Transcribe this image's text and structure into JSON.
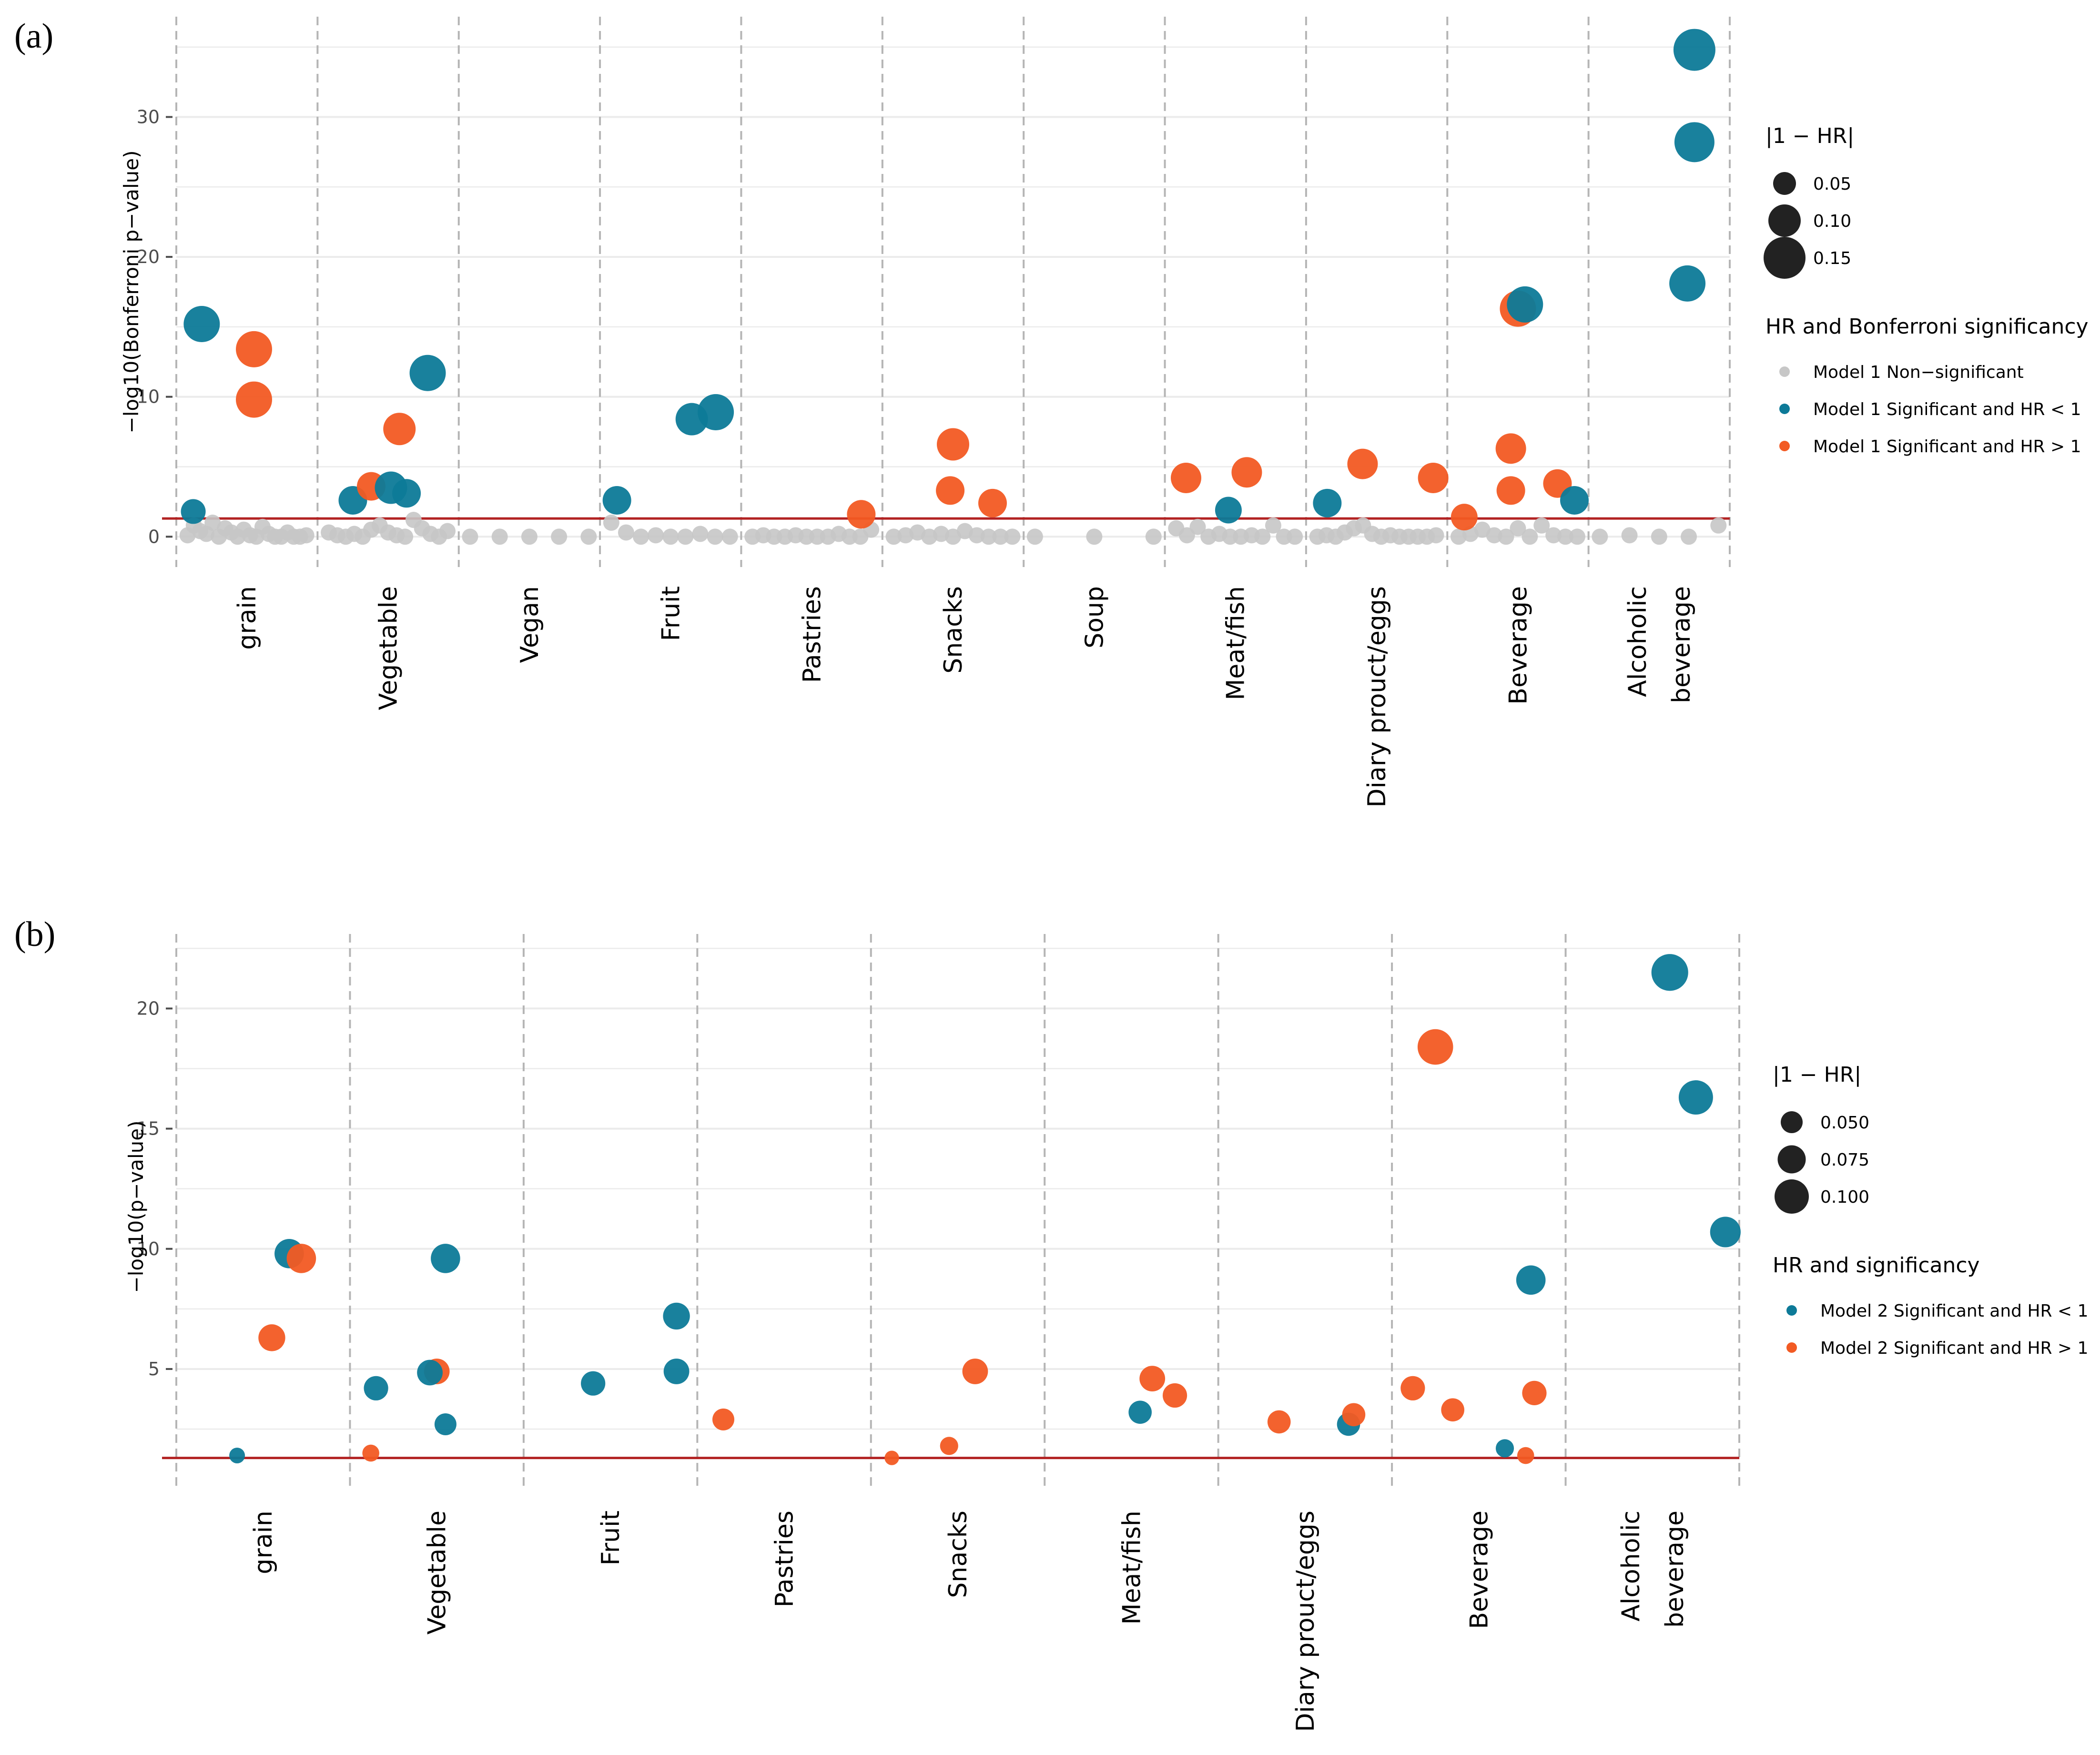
{
  "colors": {
    "nonsig": "#c7c7c7",
    "hr_lt_1": "#0d7a98",
    "hr_gt_1": "#f25a23",
    "threshold": "#b22222",
    "separator": "#b5b5b5",
    "grid": "#ebebeb"
  },
  "chart_data": [
    {
      "panel_label": "(a)",
      "type": "scatter",
      "ylabel": "−log10(Bonferroni p−value)",
      "ylim": [
        -2,
        37
      ],
      "yticks": [
        0,
        10,
        20,
        30
      ],
      "threshold": 1.3,
      "categories": [
        "grain",
        "Vegetable",
        "Vegan",
        "Fruit",
        "Pastries",
        "Snacks",
        "Soup",
        "Meat/fish",
        "Diary prouct/eggs",
        "Beverage",
        "Alcoholic beverage"
      ],
      "category_labels": [
        [
          "grain"
        ],
        [
          "Vegetable"
        ],
        [
          "Vegan"
        ],
        [
          "Fruit"
        ],
        [
          "Pastries"
        ],
        [
          "Snacks"
        ],
        [
          "Soup"
        ],
        [
          "Meat/fish"
        ],
        [
          "Diary prouct/eggs"
        ],
        [
          "Beverage"
        ],
        [
          "Alcoholic",
          "beverage"
        ]
      ],
      "legend_size": {
        "title": "|1 − HR|",
        "labels": [
          "0.05",
          "0.10",
          "0.15"
        ],
        "values": [
          0.05,
          0.1,
          0.15
        ]
      },
      "legend_color": {
        "title": "HR and Bonferroni significancy",
        "labels": [
          "Model 1 Non−significant",
          "Model 1 Significant and HR < 1",
          "Model 1 Significant and HR > 1"
        ],
        "groups": [
          "nonsig",
          "hr_lt_1",
          "hr_gt_1"
        ]
      },
      "nonsig_points": [
        {
          "category": 0,
          "values": [
            0.1,
            0.8,
            0.4,
            0.2,
            1.0,
            0.0,
            0.6,
            0.3,
            0.0,
            0.5,
            0.1,
            0.0,
            0.7,
            0.2,
            0.0,
            0.0,
            0.3,
            0.0,
            0.0,
            0.1
          ]
        },
        {
          "category": 1,
          "values": [
            0.3,
            0.1,
            0.0,
            0.2,
            0.0,
            0.5,
            0.8,
            0.3,
            0.1,
            0.0,
            1.2,
            0.6,
            0.2,
            0.0,
            0.4
          ]
        },
        {
          "category": 2,
          "values": [
            0.0,
            0.0,
            0.0,
            0.0,
            0.0
          ]
        },
        {
          "category": 3,
          "values": [
            1.0,
            0.3,
            0.0,
            0.1,
            0.0,
            0.0,
            0.2,
            0.0,
            0.0
          ]
        },
        {
          "category": 4,
          "values": [
            0.0,
            0.1,
            0.0,
            0.0,
            0.1,
            0.0,
            0.0,
            0.0,
            0.2,
            0.0,
            0.0,
            0.5
          ]
        },
        {
          "category": 5,
          "values": [
            0.0,
            0.1,
            0.3,
            0.0,
            0.2,
            0.0,
            0.4,
            0.1,
            0.0,
            0.0,
            0.0
          ]
        },
        {
          "category": 6,
          "values": [
            0.0,
            0.0,
            0.0
          ]
        },
        {
          "category": 7,
          "values": [
            0.6,
            0.1,
            0.7,
            0.0,
            0.2,
            0.0,
            0.0,
            0.1,
            0.0,
            0.8,
            0.0,
            0.0
          ]
        },
        {
          "category": 8,
          "values": [
            0.0,
            0.1,
            0.0,
            0.3,
            0.6,
            0.8,
            0.2,
            0.0,
            0.1,
            0.0,
            0.0,
            0.0,
            0.0,
            0.1
          ]
        },
        {
          "category": 9,
          "values": [
            0.0,
            0.2,
            0.5,
            0.1,
            0.0,
            0.6,
            0.0,
            0.8,
            0.1,
            0.0,
            0.0
          ]
        },
        {
          "category": 10,
          "values": [
            0.0,
            0.1,
            0.0,
            0.0,
            0.8
          ]
        }
      ],
      "points": [
        {
          "category": 0,
          "offset": -0.38,
          "y": 1.8,
          "size": 0.06,
          "group": "hr_lt_1"
        },
        {
          "category": 0,
          "offset": -0.32,
          "y": 15.2,
          "size": 0.12,
          "group": "hr_lt_1"
        },
        {
          "category": 0,
          "offset": 0.05,
          "y": 13.4,
          "size": 0.12,
          "group": "hr_gt_1"
        },
        {
          "category": 0,
          "offset": 0.05,
          "y": 9.8,
          "size": 0.12,
          "group": "hr_gt_1"
        },
        {
          "category": 1,
          "offset": -0.25,
          "y": 2.6,
          "size": 0.08,
          "group": "hr_lt_1"
        },
        {
          "category": 1,
          "offset": -0.12,
          "y": 3.6,
          "size": 0.08,
          "group": "hr_gt_1"
        },
        {
          "category": 1,
          "offset": 0.02,
          "y": 3.5,
          "size": 0.1,
          "group": "hr_lt_1"
        },
        {
          "category": 1,
          "offset": 0.08,
          "y": 7.7,
          "size": 0.1,
          "group": "hr_gt_1"
        },
        {
          "category": 1,
          "offset": 0.13,
          "y": 3.1,
          "size": 0.08,
          "group": "hr_lt_1"
        },
        {
          "category": 1,
          "offset": 0.28,
          "y": 11.7,
          "size": 0.12,
          "group": "hr_lt_1"
        },
        {
          "category": 3,
          "offset": -0.38,
          "y": 2.6,
          "size": 0.08,
          "group": "hr_lt_1"
        },
        {
          "category": 3,
          "offset": 0.15,
          "y": 8.4,
          "size": 0.1,
          "group": "hr_lt_1"
        },
        {
          "category": 3,
          "offset": 0.32,
          "y": 8.9,
          "size": 0.12,
          "group": "hr_lt_1"
        },
        {
          "category": 4,
          "offset": 0.35,
          "y": 1.6,
          "size": 0.08,
          "group": "hr_gt_1"
        },
        {
          "category": 5,
          "offset": 0.0,
          "y": 6.6,
          "size": 0.1,
          "group": "hr_gt_1"
        },
        {
          "category": 5,
          "offset": -0.02,
          "y": 3.3,
          "size": 0.08,
          "group": "hr_gt_1"
        },
        {
          "category": 5,
          "offset": 0.28,
          "y": 2.4,
          "size": 0.08,
          "group": "hr_gt_1"
        },
        {
          "category": 7,
          "offset": -0.35,
          "y": 4.2,
          "size": 0.09,
          "group": "hr_gt_1"
        },
        {
          "category": 7,
          "offset": -0.05,
          "y": 1.9,
          "size": 0.07,
          "group": "hr_lt_1"
        },
        {
          "category": 7,
          "offset": 0.08,
          "y": 4.6,
          "size": 0.09,
          "group": "hr_gt_1"
        },
        {
          "category": 8,
          "offset": -0.35,
          "y": 2.4,
          "size": 0.08,
          "group": "hr_lt_1"
        },
        {
          "category": 8,
          "offset": -0.1,
          "y": 5.2,
          "size": 0.09,
          "group": "hr_gt_1"
        },
        {
          "category": 8,
          "offset": 0.4,
          "y": 4.2,
          "size": 0.09,
          "group": "hr_gt_1"
        },
        {
          "category": 9,
          "offset": -0.38,
          "y": 1.4,
          "size": 0.07,
          "group": "hr_gt_1"
        },
        {
          "category": 9,
          "offset": -0.05,
          "y": 6.3,
          "size": 0.09,
          "group": "hr_gt_1"
        },
        {
          "category": 9,
          "offset": 0.0,
          "y": 16.3,
          "size": 0.12,
          "group": "hr_gt_1"
        },
        {
          "category": 9,
          "offset": 0.05,
          "y": 16.6,
          "size": 0.12,
          "group": "hr_lt_1"
        },
        {
          "category": 9,
          "offset": -0.05,
          "y": 3.3,
          "size": 0.08,
          "group": "hr_gt_1"
        },
        {
          "category": 9,
          "offset": 0.28,
          "y": 3.8,
          "size": 0.08,
          "group": "hr_gt_1"
        },
        {
          "category": 9,
          "offset": 0.4,
          "y": 2.6,
          "size": 0.08,
          "group": "hr_lt_1"
        },
        {
          "category": 10,
          "offset": 0.2,
          "y": 18.1,
          "size": 0.12,
          "group": "hr_lt_1"
        },
        {
          "category": 10,
          "offset": 0.25,
          "y": 28.2,
          "size": 0.14,
          "group": "hr_lt_1"
        },
        {
          "category": 10,
          "offset": 0.25,
          "y": 34.8,
          "size": 0.15,
          "group": "hr_lt_1"
        }
      ]
    },
    {
      "panel_label": "(b)",
      "type": "scatter",
      "ylabel": "−log10(p−value)",
      "ylim": [
        0.3,
        23.2
      ],
      "yticks": [
        5,
        10,
        15,
        20
      ],
      "threshold": 1.3,
      "categories": [
        "grain",
        "Vegetable",
        "Fruit",
        "Pastries",
        "Snacks",
        "Meat/fish",
        "Diary prouct/eggs",
        "Beverage",
        "Alcoholic beverage"
      ],
      "category_labels": [
        [
          "grain"
        ],
        [
          "Vegetable"
        ],
        [
          "Fruit"
        ],
        [
          "Pastries"
        ],
        [
          "Snacks"
        ],
        [
          "Meat/fish"
        ],
        [
          "Diary prouct/eggs"
        ],
        [
          "Beverage"
        ],
        [
          "Alcoholic",
          "beverage"
        ]
      ],
      "legend_size": {
        "title": "|1 − HR|",
        "labels": [
          "0.050",
          "0.075",
          "0.100"
        ],
        "values": [
          0.05,
          0.075,
          0.1
        ]
      },
      "legend_color": {
        "title": "HR and significancy",
        "labels": [
          "Model 2 Significant and HR < 1",
          "Model 2 Significant and HR > 1"
        ],
        "groups": [
          "hr_lt_1",
          "hr_gt_1"
        ]
      },
      "nonsig_points": [],
      "points": [
        {
          "category": 0,
          "offset": -0.15,
          "y": 1.4,
          "size": 0.025,
          "group": "hr_lt_1"
        },
        {
          "category": 0,
          "offset": 0.15,
          "y": 9.8,
          "size": 0.08,
          "group": "hr_lt_1"
        },
        {
          "category": 0,
          "offset": 0.22,
          "y": 9.6,
          "size": 0.08,
          "group": "hr_gt_1"
        },
        {
          "category": 0,
          "offset": 0.05,
          "y": 6.3,
          "size": 0.07,
          "group": "hr_gt_1"
        },
        {
          "category": 1,
          "offset": -0.38,
          "y": 1.5,
          "size": 0.03,
          "group": "hr_gt_1"
        },
        {
          "category": 1,
          "offset": -0.35,
          "y": 4.2,
          "size": 0.06,
          "group": "hr_lt_1"
        },
        {
          "category": 1,
          "offset": 0.0,
          "y": 4.9,
          "size": 0.065,
          "group": "hr_gt_1"
        },
        {
          "category": 1,
          "offset": -0.04,
          "y": 4.85,
          "size": 0.065,
          "group": "hr_lt_1"
        },
        {
          "category": 1,
          "offset": 0.05,
          "y": 2.7,
          "size": 0.05,
          "group": "hr_lt_1"
        },
        {
          "category": 1,
          "offset": 0.05,
          "y": 9.6,
          "size": 0.08,
          "group": "hr_lt_1"
        },
        {
          "category": 2,
          "offset": -0.1,
          "y": 4.4,
          "size": 0.06,
          "group": "hr_lt_1"
        },
        {
          "category": 2,
          "offset": 0.38,
          "y": 7.2,
          "size": 0.07,
          "group": "hr_lt_1"
        },
        {
          "category": 2,
          "offset": 0.38,
          "y": 4.9,
          "size": 0.065,
          "group": "hr_lt_1"
        },
        {
          "category": 3,
          "offset": -0.35,
          "y": 2.9,
          "size": 0.05,
          "group": "hr_gt_1"
        },
        {
          "category": 4,
          "offset": -0.38,
          "y": 1.3,
          "size": 0.02,
          "group": "hr_gt_1"
        },
        {
          "category": 4,
          "offset": -0.05,
          "y": 1.8,
          "size": 0.035,
          "group": "hr_gt_1"
        },
        {
          "category": 4,
          "offset": 0.1,
          "y": 4.9,
          "size": 0.065,
          "group": "hr_gt_1"
        },
        {
          "category": 5,
          "offset": 0.05,
          "y": 3.2,
          "size": 0.055,
          "group": "hr_lt_1"
        },
        {
          "category": 5,
          "offset": 0.12,
          "y": 4.6,
          "size": 0.065,
          "group": "hr_gt_1"
        },
        {
          "category": 5,
          "offset": 0.25,
          "y": 3.9,
          "size": 0.06,
          "group": "hr_gt_1"
        },
        {
          "category": 6,
          "offset": -0.15,
          "y": 2.8,
          "size": 0.055,
          "group": "hr_gt_1"
        },
        {
          "category": 6,
          "offset": 0.25,
          "y": 2.7,
          "size": 0.055,
          "group": "hr_lt_1"
        },
        {
          "category": 6,
          "offset": 0.28,
          "y": 3.1,
          "size": 0.055,
          "group": "hr_gt_1"
        },
        {
          "category": 7,
          "offset": -0.25,
          "y": 18.4,
          "size": 0.105,
          "group": "hr_gt_1"
        },
        {
          "category": 7,
          "offset": -0.38,
          "y": 4.2,
          "size": 0.06,
          "group": "hr_gt_1"
        },
        {
          "category": 7,
          "offset": -0.15,
          "y": 3.3,
          "size": 0.055,
          "group": "hr_gt_1"
        },
        {
          "category": 7,
          "offset": 0.15,
          "y": 1.7,
          "size": 0.035,
          "group": "hr_lt_1"
        },
        {
          "category": 7,
          "offset": 0.27,
          "y": 1.4,
          "size": 0.03,
          "group": "hr_gt_1"
        },
        {
          "category": 7,
          "offset": 0.3,
          "y": 8.7,
          "size": 0.08,
          "group": "hr_lt_1"
        },
        {
          "category": 7,
          "offset": 0.32,
          "y": 4.0,
          "size": 0.06,
          "group": "hr_gt_1"
        },
        {
          "category": 8,
          "offset": 0.1,
          "y": 21.5,
          "size": 0.11,
          "group": "hr_lt_1"
        },
        {
          "category": 8,
          "offset": 0.25,
          "y": 16.3,
          "size": 0.1,
          "group": "hr_lt_1"
        },
        {
          "category": 8,
          "offset": 0.42,
          "y": 10.7,
          "size": 0.085,
          "group": "hr_lt_1"
        }
      ]
    }
  ]
}
